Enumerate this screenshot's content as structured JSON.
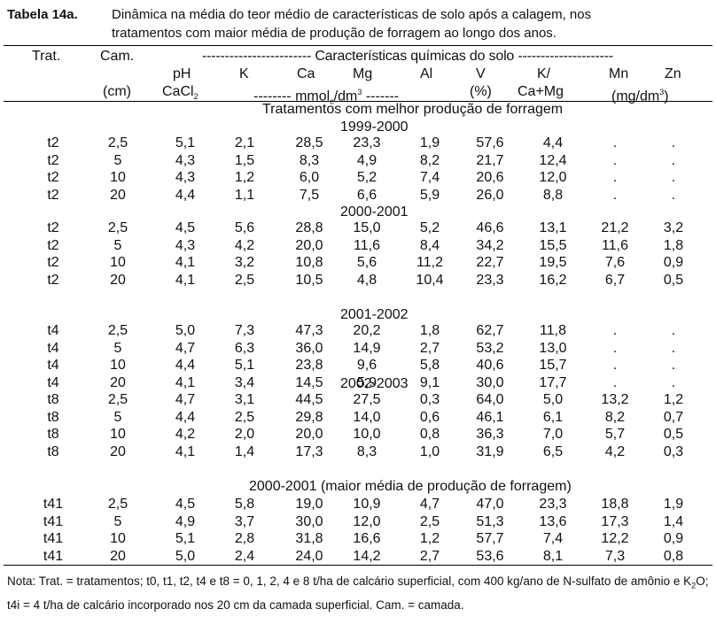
{
  "caption": {
    "label": "Tabela 14a.",
    "line1": "Dinâmica na média do teor médio de características de solo após a calagem, nos",
    "line2": "tratamentos com maior média de produção de forragem ao longo dos anos."
  },
  "header": {
    "trat": "Trat.",
    "cam": "Cam.",
    "group": "------------------------ Características químicas do solo ---------------------",
    "ph": "pH",
    "k": "K",
    "ca": "Ca",
    "mg": "Mg",
    "al": "Al",
    "v": "V",
    "kcamg_top": "K/",
    "mn": "Mn",
    "zn": "Zn",
    "cm": "(cm)",
    "cacl": "CaCl",
    "cacl_sub": "2",
    "mmol_pre": "-------- mmol",
    "mmol_sub": "c",
    "mmol_mid": "/dm",
    "mmol_sup": "3",
    "mmol_post": " -------",
    "pct": "(%)",
    "kcamg_bot": "Ca+Mg",
    "mgdm": "(mg/dm",
    "mgdm_sup": "3",
    "mgdm_close": ")"
  },
  "sections": [
    {
      "title": "Tratamentos com melhor produção de forragem",
      "year": "1999-2000",
      "rows": [
        [
          "t2",
          "2,5",
          "5,1",
          "2,1",
          "28,5",
          "23,3",
          "1,9",
          "57,6",
          "4,4",
          ".",
          "."
        ],
        [
          "t2",
          "5",
          "4,3",
          "1,5",
          "8,3",
          "4,9",
          "8,2",
          "21,7",
          "12,4",
          ".",
          "."
        ],
        [
          "t2",
          "10",
          "4,3",
          "1,2",
          "6,0",
          "5,2",
          "7,4",
          "20,6",
          "12,0",
          ".",
          "."
        ],
        [
          "t2",
          "20",
          "4,4",
          "1,1",
          "7,5",
          "6,6",
          "5,9",
          "26,0",
          "8,8",
          ".",
          "."
        ]
      ]
    },
    {
      "title": "",
      "year": "2000-2001",
      "rows": [
        [
          "t2",
          "2,5",
          "4,5",
          "5,6",
          "28,8",
          "15,0",
          "5,2",
          "46,6",
          "13,1",
          "21,2",
          "3,2"
        ],
        [
          "t2",
          "5",
          "4,3",
          "4,2",
          "20,0",
          "11,6",
          "8,4",
          "34,2",
          "15,5",
          "11,6",
          "1,8"
        ],
        [
          "t2",
          "10",
          "4,1",
          "3,2",
          "10,8",
          "5,6",
          "11,2",
          "22,7",
          "19,5",
          "7,6",
          "0,9"
        ],
        [
          "t2",
          "20",
          "4,1",
          "2,5",
          "10,5",
          "4,8",
          "10,4",
          "23,3",
          "16,2",
          "6,7",
          "0,5"
        ]
      ]
    },
    {
      "title": "",
      "year": "2001-2002",
      "rows": [
        [
          "t4",
          "2,5",
          "5,0",
          "7,3",
          "47,3",
          "20,2",
          "1,8",
          "62,7",
          "11,8",
          ".",
          "."
        ],
        [
          "t4",
          "5",
          "4,7",
          "6,3",
          "36,0",
          "14,9",
          "2,7",
          "53,2",
          "13,0",
          ".",
          "."
        ],
        [
          "t4",
          "10",
          "4,4",
          "5,1",
          "23,8",
          "9,6",
          "5,8",
          "40,6",
          "15,7",
          ".",
          "."
        ],
        [
          "t4",
          "20",
          "4,1",
          "3,4",
          "14,5",
          "5,9",
          "9,1",
          "30,0",
          "17,7",
          ".",
          "."
        ]
      ]
    },
    {
      "title": "",
      "year": "2002-2003",
      "rows": [
        [
          "t8",
          "2,5",
          "4,7",
          "3,1",
          "44,5",
          "27,5",
          "0,3",
          "64,0",
          "5,0",
          "13,2",
          "1,2"
        ],
        [
          "t8",
          "5",
          "4,4",
          "2,5",
          "29,8",
          "14,0",
          "0,6",
          "46,1",
          "6,1",
          "8,2",
          "0,7"
        ],
        [
          "t8",
          "10",
          "4,2",
          "2,0",
          "20,0",
          "10,0",
          "0,8",
          "36,3",
          "7,0",
          "5,7",
          "0,5"
        ],
        [
          "t8",
          "20",
          "4,1",
          "1,4",
          "17,3",
          "8,3",
          "1,0",
          "31,9",
          "6,5",
          "4,2",
          "0,3"
        ]
      ]
    },
    {
      "title": "",
      "year": "2000-2001 (maior média de produção de forragem)",
      "rows": [
        [
          "t41",
          "2,5",
          "4,5",
          "5,8",
          "19,0",
          "10,9",
          "4,7",
          "47,0",
          "23,3",
          "18,8",
          "1,9"
        ],
        [
          "t41",
          "5",
          "4,9",
          "3,7",
          "30,0",
          "12,0",
          "2,5",
          "51,3",
          "13,6",
          "17,3",
          "1,4"
        ],
        [
          "t41",
          "10",
          "5,1",
          "2,8",
          "31,8",
          "16,6",
          "1,2",
          "57,7",
          "7,4",
          "12,2",
          "0,9"
        ],
        [
          "t41",
          "20",
          "5,0",
          "2,4",
          "24,0",
          "14,2",
          "2,7",
          "53,6",
          "8,1",
          "7,3",
          "0,8"
        ]
      ]
    }
  ],
  "note": {
    "part1": "Nota: Trat. = tratamentos; t0, t1, t2, t4 e t8 = 0, 1, 2, 4 e 8 t/ha de calcário superficial, com 400 kg/ano de N-sulfato de amônio e K",
    "sub": "2",
    "part2": "O; t4i = 4 t/ha de calcário incorporado nos 20 cm da camada superficial. Cam. = camada."
  }
}
